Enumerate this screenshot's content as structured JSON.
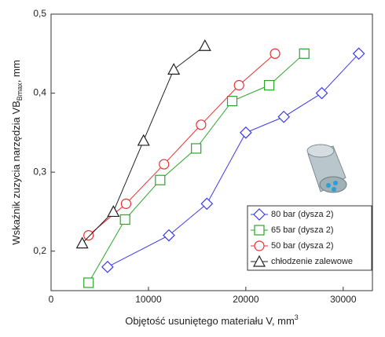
{
  "chart_data": {
    "type": "line",
    "xlabel": {
      "text": "Objętość usuniętego materiału V, mm",
      "sup": "3"
    },
    "ylabel": {
      "text": "Wskaźnik zuzycia narzędzia VB",
      "sub": "Bmax",
      "tail": ", mm"
    },
    "xlim": [
      0,
      33000
    ],
    "ylim": [
      0.15,
      0.5
    ],
    "xticks": [
      0,
      10000,
      20000,
      30000
    ],
    "yticks": [
      {
        "value": 0.2,
        "label": "0,2"
      },
      {
        "value": 0.3,
        "label": "0,3"
      },
      {
        "value": 0.4,
        "label": "0,4"
      },
      {
        "value": 0.5,
        "label": "0,5"
      }
    ],
    "grid": false,
    "legend": "lower right",
    "series": [
      {
        "name": "80 bar (dysza 2)",
        "color": "#3a3ae8",
        "marker": "diamond",
        "x": [
          5800,
          12100,
          16000,
          20000,
          23900,
          27800,
          31600
        ],
        "values": [
          0.18,
          0.22,
          0.26,
          0.35,
          0.37,
          0.4,
          0.45
        ]
      },
      {
        "name": "65 bar (dysza 2)",
        "color": "#2aa52a",
        "marker": "square",
        "x": [
          3850,
          7600,
          11200,
          14900,
          18600,
          22400,
          26000
        ],
        "values": [
          0.16,
          0.24,
          0.29,
          0.33,
          0.39,
          0.41,
          0.45
        ]
      },
      {
        "name": "50 bar (dysza 2)",
        "color": "#e83030",
        "marker": "circle",
        "x": [
          3850,
          7700,
          11600,
          15400,
          19300,
          23000
        ],
        "values": [
          0.22,
          0.26,
          0.31,
          0.36,
          0.41,
          0.45
        ]
      },
      {
        "name": "chłodzenie zalewowe",
        "color": "#222222",
        "marker": "triangle",
        "x": [
          3200,
          6400,
          9500,
          12600,
          15800
        ],
        "values": [
          0.21,
          0.25,
          0.34,
          0.43,
          0.46
        ]
      }
    ]
  }
}
